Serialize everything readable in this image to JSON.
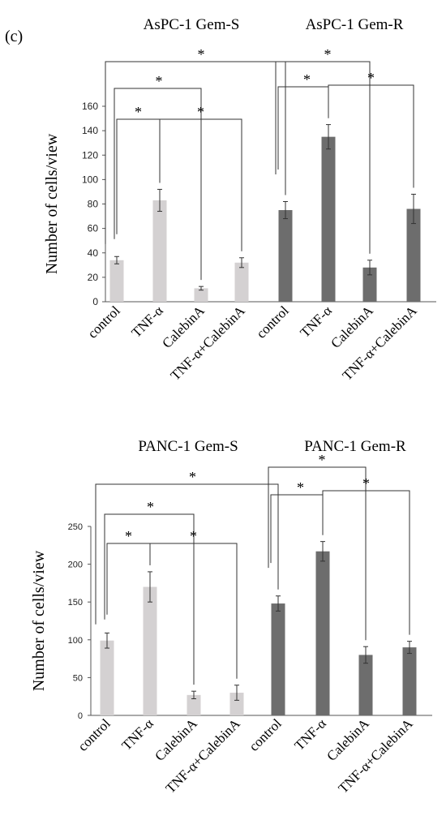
{
  "panel_label": "(c)",
  "chart_data": [
    {
      "type": "bar",
      "ylabel": "Number of cells/view",
      "ylim": [
        0,
        160
      ],
      "yticks": [
        0,
        20,
        40,
        60,
        80,
        100,
        120,
        140,
        160
      ],
      "categories": [
        "control",
        "TNF-α",
        "CalebinA",
        "TNF-α+CalebinA",
        "control",
        "TNF-α",
        "CalebinA",
        "TNF-α+CalebinA"
      ],
      "groups": [
        {
          "name": "AsPC-1 Gem-S",
          "color": "#d4d1d2"
        },
        {
          "name": "AsPC-1 Gem-R",
          "color": "#6d6d6d"
        }
      ],
      "values": [
        34,
        83,
        11,
        32,
        75,
        135,
        28,
        76
      ],
      "errors": [
        3,
        9,
        1.5,
        4,
        7,
        10,
        6,
        12
      ],
      "significance": [
        {
          "from": 0,
          "to": 4,
          "label": "*"
        },
        {
          "from": 0,
          "to": 2,
          "label": "*"
        },
        {
          "from": 0,
          "to": 1,
          "label": "*"
        },
        {
          "from": 1,
          "to": 3,
          "label": "*"
        },
        {
          "from": 4,
          "to": 6,
          "label": "*"
        },
        {
          "from": 4,
          "to": 5,
          "label": "*"
        },
        {
          "from": 5,
          "to": 7,
          "label": "*"
        }
      ]
    },
    {
      "type": "bar",
      "ylabel": "Number of cells/view",
      "ylim": [
        0,
        250
      ],
      "yticks": [
        0,
        50,
        100,
        150,
        200,
        250
      ],
      "categories": [
        "control",
        "TNF-α",
        "CalebinA",
        "TNF-α+CalebinA",
        "control",
        "TNF-α",
        "CalebinA",
        "TNF-α+CalebinA"
      ],
      "groups": [
        {
          "name": "PANC-1 Gem-S",
          "color": "#d4d1d2"
        },
        {
          "name": "PANC-1 Gem-R",
          "color": "#6d6d6d"
        }
      ],
      "values": [
        99,
        170,
        27,
        30,
        148,
        217,
        80,
        90
      ],
      "errors": [
        10,
        20,
        5,
        10,
        10,
        13,
        11,
        8
      ],
      "significance": [
        {
          "from": 0,
          "to": 4,
          "label": "*"
        },
        {
          "from": 0,
          "to": 2,
          "label": "*"
        },
        {
          "from": 0,
          "to": 1,
          "label": "*"
        },
        {
          "from": 1,
          "to": 3,
          "label": "*"
        },
        {
          "from": 4,
          "to": 6,
          "label": "*"
        },
        {
          "from": 4,
          "to": 5,
          "label": "*"
        },
        {
          "from": 5,
          "to": 7,
          "label": "*"
        }
      ]
    }
  ]
}
